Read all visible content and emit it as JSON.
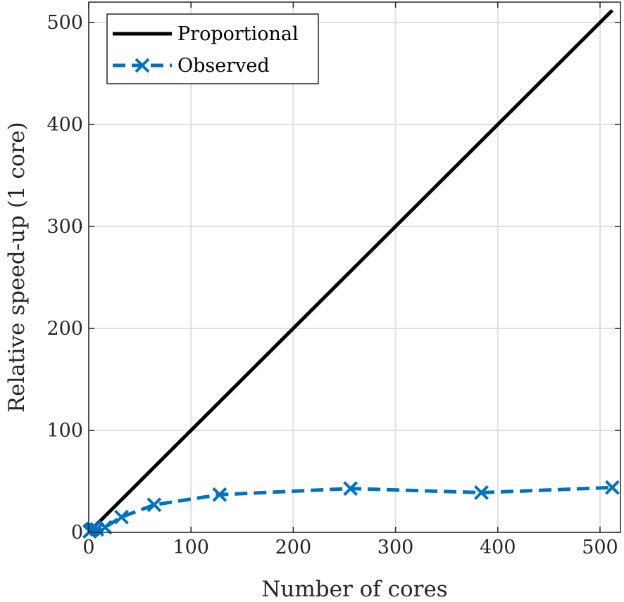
{
  "chart_data": {
    "type": "line",
    "xlabel": "Number of cores",
    "ylabel": "Relative speed-up (1 core)",
    "xlim": [
      0,
      520
    ],
    "ylim": [
      0,
      520
    ],
    "xticks": [
      0,
      100,
      200,
      300,
      400,
      500
    ],
    "yticks": [
      0,
      100,
      200,
      300,
      400,
      500
    ],
    "grid": true,
    "legend_position": "top-left",
    "series": [
      {
        "name": "Proportional",
        "color": "#000000",
        "line_style": "solid",
        "marker": "none",
        "x": [
          1,
          512
        ],
        "y": [
          1,
          512
        ]
      },
      {
        "name": "Observed",
        "color": "#0072BD",
        "line_style": "dashed",
        "marker": "x",
        "x": [
          1,
          2,
          4,
          8,
          16,
          32,
          64,
          128,
          256,
          384,
          512
        ],
        "y": [
          1,
          1.9,
          3.5,
          3,
          5,
          15,
          27,
          37,
          43,
          39,
          44
        ]
      }
    ]
  }
}
